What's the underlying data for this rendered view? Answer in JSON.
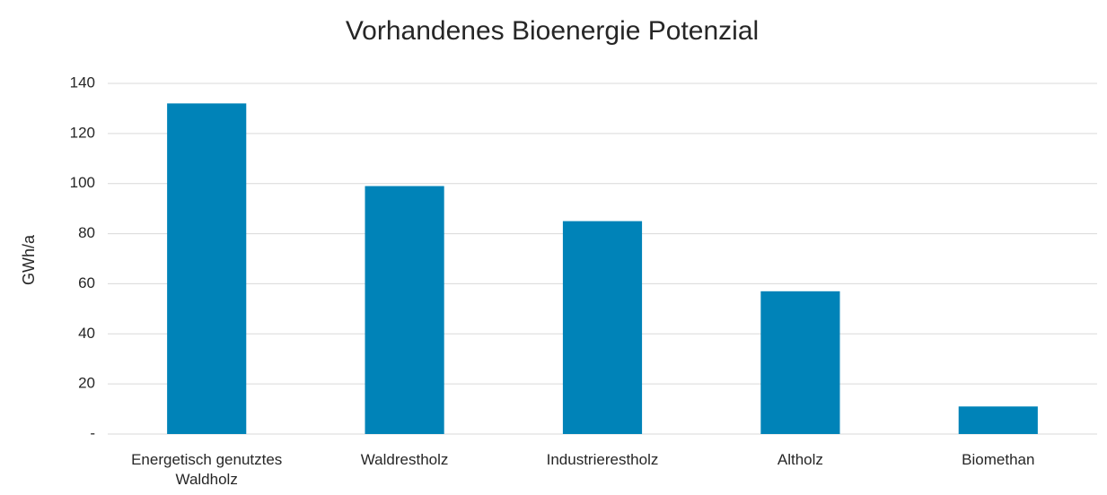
{
  "chart_data": {
    "type": "bar",
    "title": "Vorhandenes Bioenergie Potenzial",
    "y_label": "GWh/a",
    "categories": [
      "Energetisch genutztes Waldholz",
      "Waldrestholz",
      "Industrierestholz",
      "Altholz",
      "Biomethan"
    ],
    "values": [
      132,
      99,
      85,
      57,
      11
    ],
    "color": "#0083b8",
    "ylim": [
      0,
      140
    ],
    "yticks": [
      {
        "value": 0,
        "label": "-"
      },
      20,
      40,
      60,
      80,
      100,
      120,
      140
    ],
    "grid": true
  }
}
